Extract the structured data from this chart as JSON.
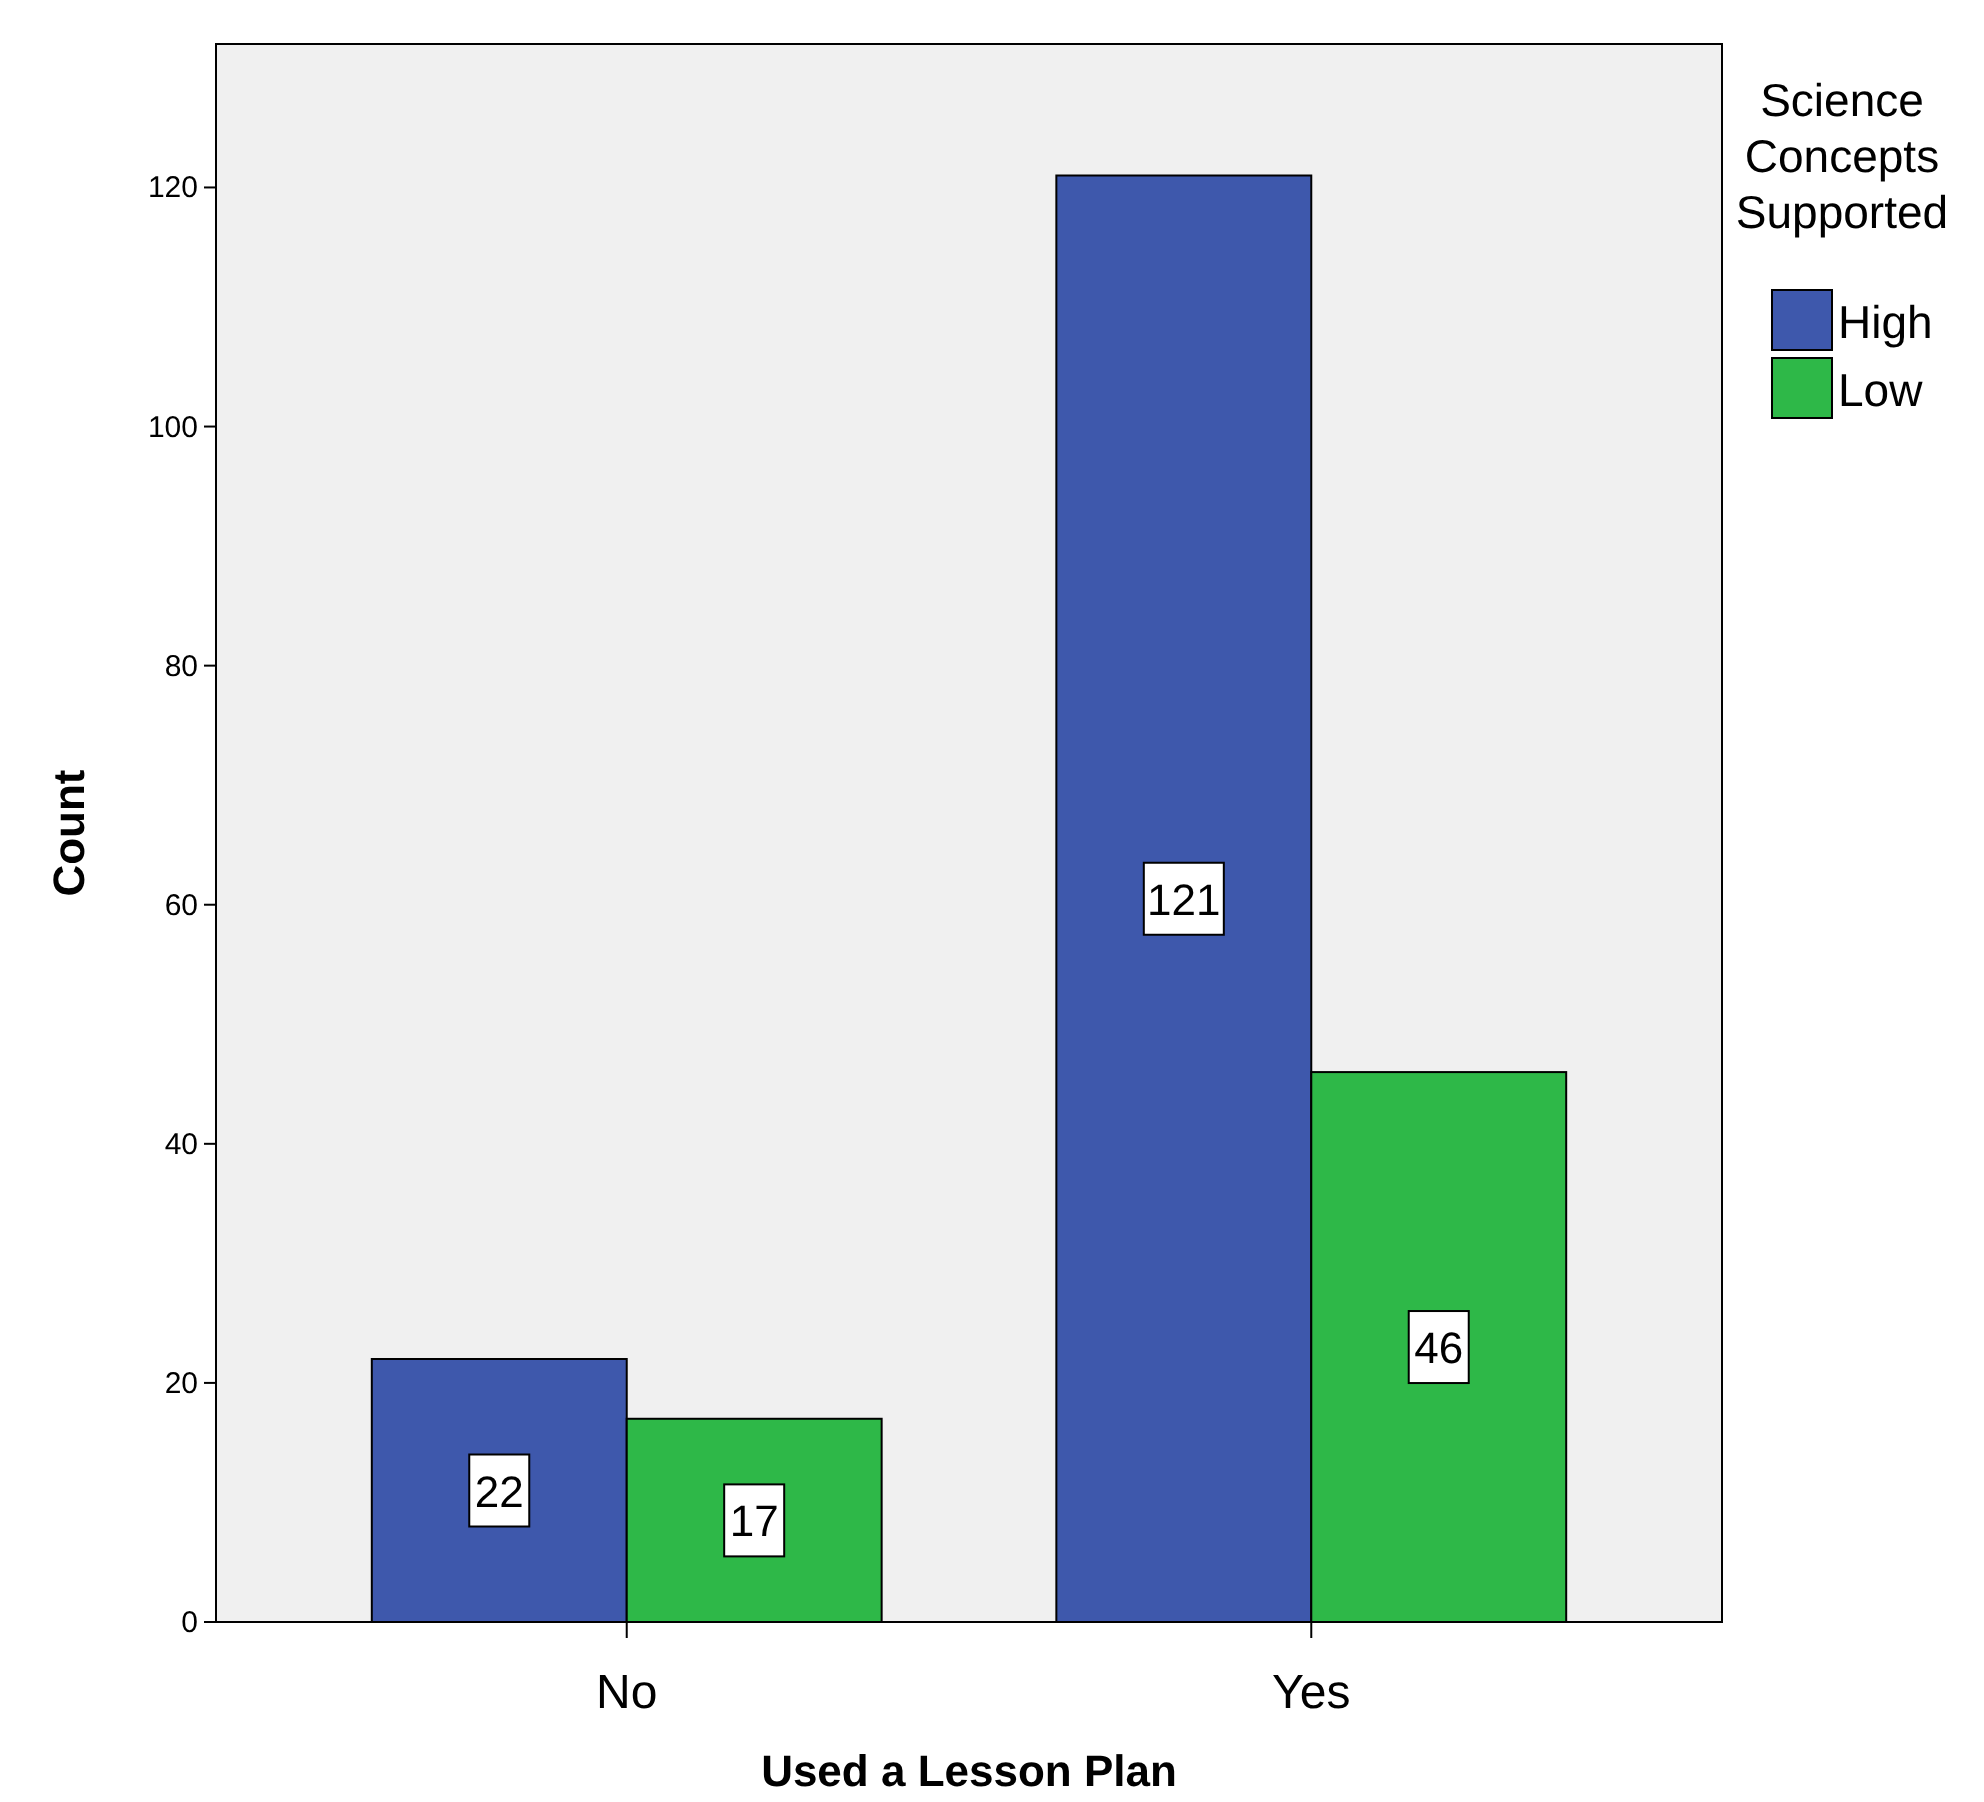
{
  "chart_data": {
    "type": "bar",
    "xlabel": "Used a Lesson Plan",
    "ylabel": "Count",
    "legend_title": "Science Concepts Supported",
    "categories": [
      "No",
      "Yes"
    ],
    "series": [
      {
        "name": "High",
        "color": "#3e58ac",
        "values": [
          22,
          121
        ]
      },
      {
        "name": "Low",
        "color": "#2eb848",
        "values": [
          17,
          46
        ]
      }
    ],
    "ylim": [
      0,
      132
    ],
    "yticks": [
      0,
      20,
      40,
      60,
      80,
      100,
      120
    ],
    "data_labels": true,
    "legend": "right",
    "grid": false
  }
}
